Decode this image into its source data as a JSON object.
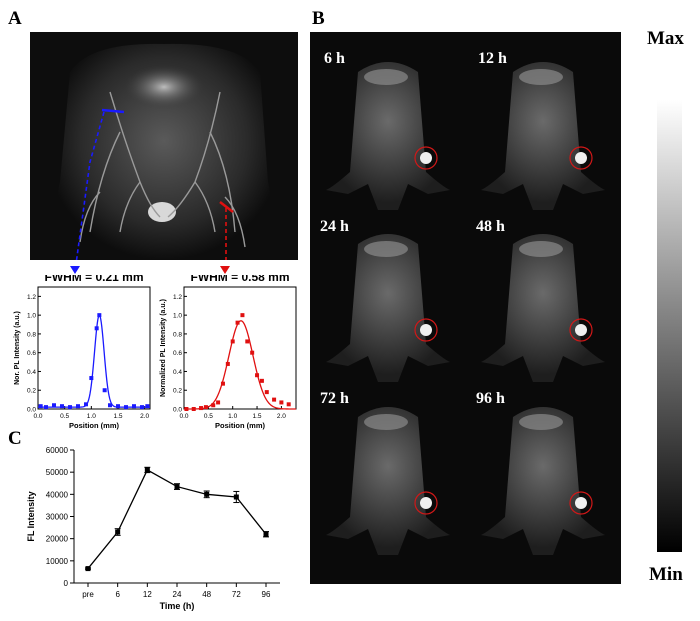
{
  "panels": {
    "a": "A",
    "b": "B",
    "c": "C"
  },
  "plot1": {
    "fwhm_text": "FWHM = 0.21 mm",
    "xlabel": "Position (mm)",
    "ylabel": "Nor. PL Intensity (a.u.)",
    "color": "#1a1aff",
    "xticks": [
      "0.0",
      "0.5",
      "1.0",
      "1.5",
      "2.0"
    ],
    "yticks": [
      "0.0",
      "0.2",
      "0.4",
      "0.6",
      "0.8",
      "1.0",
      "1.2"
    ]
  },
  "plot2": {
    "fwhm_text": "FWHM = 0.58 mm",
    "xlabel": "Position (mm)",
    "ylabel": "Normalized PL Intensity (a.u.)",
    "color": "#e01010",
    "xticks": [
      "0.0",
      "0.5",
      "1.0",
      "1.5",
      "2.0"
    ],
    "yticks": [
      "0.0",
      "0.2",
      "0.4",
      "0.6",
      "0.8",
      "1.0",
      "1.2"
    ]
  },
  "time_labels": [
    "6 h",
    "12 h",
    "24 h",
    "48 h",
    "72 h",
    "96 h"
  ],
  "colorbar": {
    "max": "Max",
    "min": "Min"
  },
  "chart_data": [
    {
      "type": "scatter",
      "xlabel": "Position (mm)",
      "ylabel": "Nor. PL Intensity (a.u.)",
      "xlim": [
        0,
        2.1
      ],
      "ylim": [
        0,
        1.3
      ],
      "points_x": [
        0.05,
        0.15,
        0.3,
        0.45,
        0.6,
        0.75,
        0.9,
        1.0,
        1.1,
        1.15,
        1.25,
        1.35,
        1.5,
        1.65,
        1.8,
        1.95,
        2.05
      ],
      "points_y": [
        0.03,
        0.02,
        0.04,
        0.03,
        0.02,
        0.03,
        0.05,
        0.33,
        0.86,
        1.0,
        0.2,
        0.04,
        0.03,
        0.02,
        0.03,
        0.02,
        0.03
      ],
      "fit": {
        "center": 1.15,
        "fwhm": 0.21,
        "amp": 0.98,
        "base": 0.02
      }
    },
    {
      "type": "scatter",
      "xlabel": "Position (mm)",
      "ylabel": "Normalized PL Intensity (a.u.)",
      "xlim": [
        0,
        2.3
      ],
      "ylim": [
        0,
        1.3
      ],
      "points_x": [
        0.05,
        0.2,
        0.35,
        0.45,
        0.6,
        0.7,
        0.8,
        0.9,
        1.0,
        1.1,
        1.2,
        1.3,
        1.4,
        1.5,
        1.6,
        1.7,
        1.85,
        2.0,
        2.15
      ],
      "points_y": [
        0.0,
        0.0,
        0.01,
        0.02,
        0.04,
        0.07,
        0.27,
        0.48,
        0.72,
        0.92,
        1.0,
        0.72,
        0.6,
        0.36,
        0.3,
        0.18,
        0.1,
        0.07,
        0.05
      ],
      "fit": {
        "center": 1.17,
        "fwhm": 0.58,
        "amp": 0.94,
        "base": 0.0
      }
    },
    {
      "type": "line",
      "xlabel": "Time (h)",
      "ylabel": "FL Intensity",
      "categories": [
        "pre",
        "6",
        "12",
        "24",
        "48",
        "72",
        "96"
      ],
      "values": [
        6500,
        23000,
        51000,
        43500,
        40000,
        38800,
        22000
      ],
      "errors": [
        300,
        1500,
        1200,
        1300,
        1500,
        2500,
        1200
      ],
      "ylim": [
        0,
        60000
      ],
      "yticks": [
        "0",
        "10000",
        "20000",
        "30000",
        "40000",
        "50000",
        "60000"
      ]
    }
  ]
}
